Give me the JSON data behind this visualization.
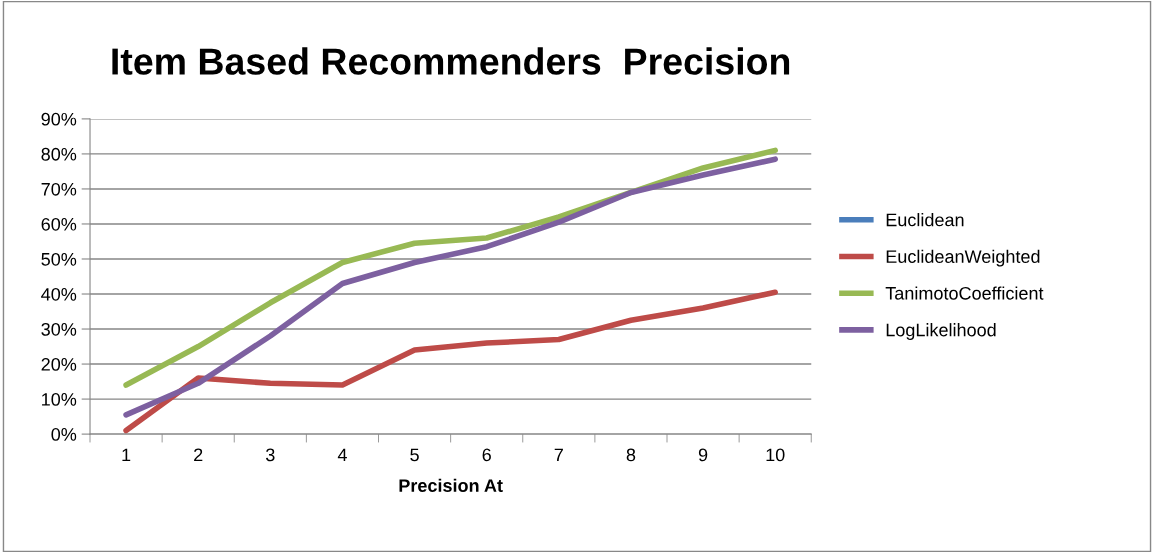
{
  "chart_data": {
    "type": "line",
    "title": "Item Based Recommenders  Precision",
    "xlabel": "Precision At",
    "categories": [
      "1",
      "2",
      "3",
      "4",
      "5",
      "6",
      "7",
      "8",
      "9",
      "10"
    ],
    "series": [
      {
        "name": "Euclidean",
        "color": "#4a7ebb",
        "values": [
          null,
          null,
          null,
          null,
          null,
          null,
          null,
          null,
          null,
          null
        ]
      },
      {
        "name": "EuclideanWeighted",
        "color": "#be4b48",
        "values": [
          1,
          16,
          14.5,
          14,
          24,
          26,
          27,
          32.5,
          36,
          40.5
        ]
      },
      {
        "name": "TanimotoCoefficient",
        "color": "#98b954",
        "values": [
          14,
          25,
          37.5,
          49,
          54.5,
          56,
          62,
          69,
          76,
          81
        ]
      },
      {
        "name": "LogLikelihood",
        "color": "#7d60a0",
        "values": [
          5.5,
          14.5,
          28,
          43,
          49,
          53.5,
          60.5,
          69,
          74,
          78.5
        ]
      }
    ],
    "ylim": [
      0,
      90
    ],
    "yticks": [
      {
        "value": 0,
        "label": "0%"
      },
      {
        "value": 10,
        "label": "10%"
      },
      {
        "value": 20,
        "label": "20%"
      },
      {
        "value": 30,
        "label": "30%"
      },
      {
        "value": 40,
        "label": "40%"
      },
      {
        "value": 50,
        "label": "50%"
      },
      {
        "value": 60,
        "label": "60%"
      },
      {
        "value": 70,
        "label": "70%"
      },
      {
        "value": 80,
        "label": "80%"
      },
      {
        "value": 90,
        "label": "90%"
      }
    ],
    "grid": "y",
    "legend": "right",
    "marker": "none",
    "line_style": "solid"
  }
}
